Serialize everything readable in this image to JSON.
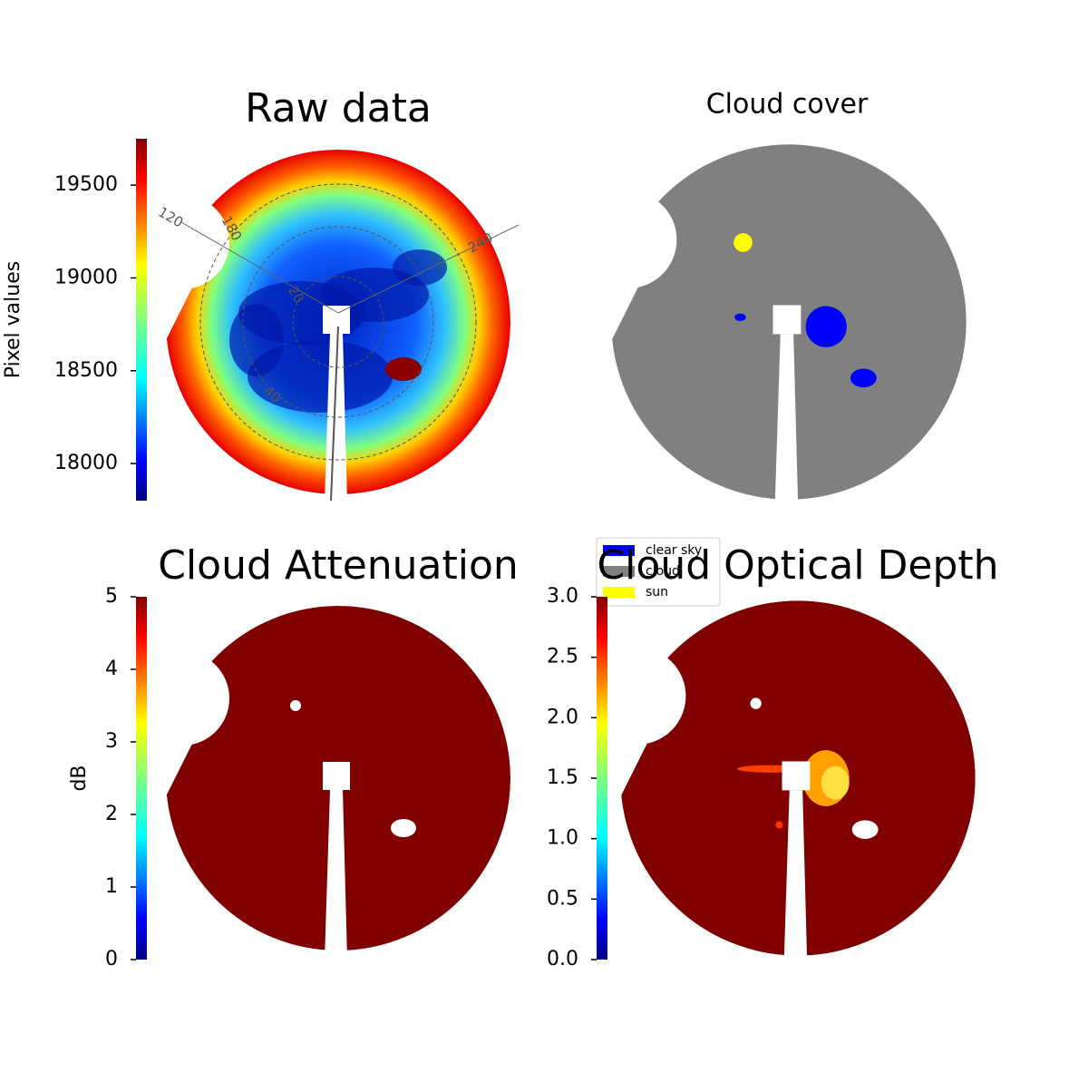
{
  "chart_data": [
    {
      "type": "image",
      "title": "Raw data",
      "colorbar": {
        "label": "Pixel values",
        "lim": [
          17800,
          19750
        ],
        "ticks": [
          18000,
          18500,
          19000,
          19500
        ],
        "colormap": "jet"
      },
      "azimuth_labels": [
        "120",
        "180",
        "240"
      ],
      "radius_labels": [
        "20",
        "40"
      ]
    },
    {
      "type": "image",
      "title": "Cloud cover",
      "series": [
        {
          "name": "clear sky",
          "color": "#0000ff"
        },
        {
          "name": "cloud",
          "color": "#808080"
        },
        {
          "name": "sun",
          "color": "#ffff00"
        }
      ]
    },
    {
      "type": "image",
      "title": "Cloud Attenuation",
      "colorbar": {
        "label": "dB",
        "lim": [
          0,
          5
        ],
        "ticks": [
          0,
          1,
          2,
          3,
          4,
          5
        ],
        "colormap": "jet"
      }
    },
    {
      "type": "image",
      "title": "Cloud Optical Depth",
      "colorbar": {
        "lim": [
          0,
          3
        ],
        "ticks": [
          {
            "value": 0,
            "label": "0.0"
          },
          0.5,
          {
            "value": 1,
            "label": "1.0"
          },
          1.5,
          {
            "value": 2,
            "label": "2.0"
          },
          2.5,
          {
            "value": 3,
            "label": "3.0"
          }
        ],
        "colormap": "jet"
      }
    }
  ]
}
